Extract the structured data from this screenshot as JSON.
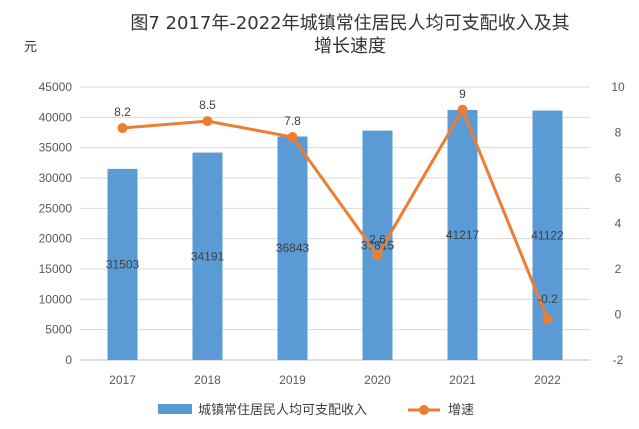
{
  "chart_data": {
    "type": "bar+line",
    "title": "图7  2017年-2022年城镇常住居民人均可支配收入及其增长速度",
    "y_unit": "元",
    "categories": [
      "2017",
      "2018",
      "2019",
      "2020",
      "2021",
      "2022"
    ],
    "series": [
      {
        "name": "城镇常住居民人均可支配收入",
        "type": "bar",
        "axis": "left",
        "color": "#5B9BD5",
        "values": [
          31503,
          34191,
          36843,
          37815,
          41217,
          41122
        ],
        "labels": [
          "31503",
          "34191",
          "36843",
          "37815",
          "41217",
          "41122"
        ]
      },
      {
        "name": "增速",
        "type": "line",
        "axis": "right",
        "color": "#ED7D31",
        "values": [
          8.2,
          8.5,
          7.8,
          2.6,
          9,
          -0.2
        ],
        "labels": [
          "8.2",
          "8.5",
          "7.8",
          "2.6",
          "9",
          "-0.2"
        ]
      }
    ],
    "y_left": {
      "min": 0,
      "max": 45000,
      "ticks": [
        "0",
        "5000",
        "10000",
        "15000",
        "20000",
        "25000",
        "30000",
        "35000",
        "40000",
        "45000"
      ]
    },
    "y_right": {
      "min": -2,
      "max": 10,
      "ticks": [
        "-2",
        "0",
        "2",
        "4",
        "6",
        "8",
        "10"
      ]
    },
    "grid": true,
    "legend_position": "bottom"
  }
}
